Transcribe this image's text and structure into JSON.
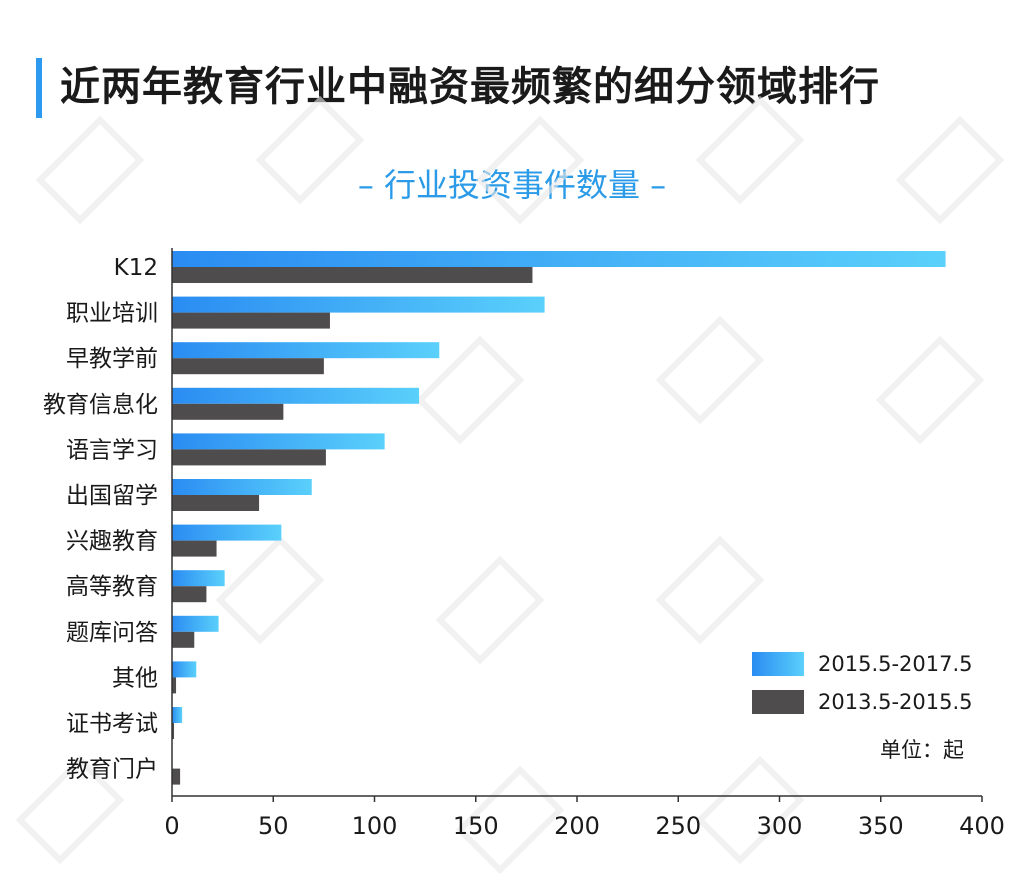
{
  "header": {
    "title": "近两年教育行业中融资最频繁的细分领域排行",
    "subtitle": "– 行业投资事件数量 –"
  },
  "unit_label": "单位：起",
  "colors": {
    "accent": "#2d9af2",
    "series_recent_start": "#2a8cf2",
    "series_recent_end": "#5ad0fb",
    "series_old": "#4f4c4d",
    "axis": "#333333"
  },
  "chart_data": {
    "type": "bar",
    "orientation": "horizontal",
    "categories": [
      "K12",
      "职业培训",
      "早教学前",
      "教育信息化",
      "语言学习",
      "出国留学",
      "兴趣教育",
      "高等教育",
      "题库问答",
      "其他",
      "证书考试",
      "教育门户"
    ],
    "series": [
      {
        "name": "2015.5-2017.5",
        "values": [
          382,
          184,
          132,
          122,
          105,
          69,
          54,
          26,
          23,
          12,
          5,
          0
        ]
      },
      {
        "name": "2013.5-2015.5",
        "values": [
          178,
          78,
          75,
          55,
          76,
          43,
          22,
          17,
          11,
          2,
          1,
          4
        ]
      }
    ],
    "xlim": [
      0,
      400
    ],
    "xticks": [
      0,
      50,
      100,
      150,
      200,
      250,
      300,
      350,
      400
    ],
    "xlabel": "",
    "ylabel": "",
    "legend_position": "bottom-right",
    "grid": false
  }
}
